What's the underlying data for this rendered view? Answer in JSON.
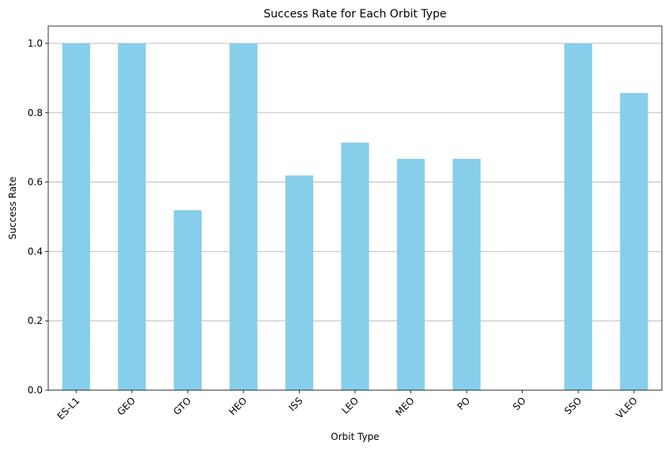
{
  "chart_data": {
    "type": "bar",
    "title": "Success Rate for Each Orbit Type",
    "xlabel": "Orbit Type",
    "ylabel": "Success Rate",
    "categories": [
      "ES-L1",
      "GEO",
      "GTO",
      "HEO",
      "ISS",
      "LEO",
      "MEO",
      "PO",
      "SO",
      "SSO",
      "VLEO"
    ],
    "values": [
      1.0,
      1.0,
      0.519,
      1.0,
      0.619,
      0.714,
      0.667,
      0.667,
      0.0,
      1.0,
      0.857
    ],
    "ylim": [
      0,
      1.05
    ],
    "yticks": [
      0.0,
      0.2,
      0.4,
      0.6,
      0.8,
      1.0
    ],
    "ytick_labels": [
      "0.0",
      "0.2",
      "0.4",
      "0.6",
      "0.8",
      "1.0"
    ],
    "grid": "horizontal",
    "xtick_rotation_deg": 45,
    "bar_color": "#87ceeb",
    "grid_color": "#b0b0b0",
    "axis_color": "#000000"
  }
}
